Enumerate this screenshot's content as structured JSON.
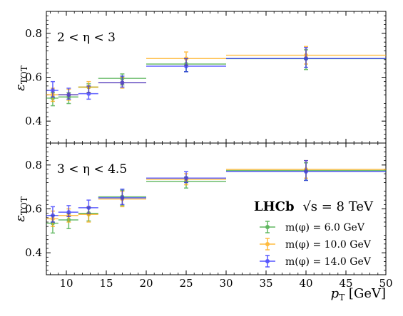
{
  "chart_data": {
    "type": "scatter",
    "xlabel": "p_T [GeV]",
    "ylabel": "ε_TOT",
    "xlim": [
      7.5,
      50
    ],
    "xticks": [
      10,
      15,
      20,
      25,
      30,
      35,
      40,
      45,
      50
    ],
    "yticks": [
      0.4,
      0.6,
      0.8
    ],
    "x_bins": [
      [
        7.5,
        9
      ],
      [
        9,
        11.5
      ],
      [
        11.5,
        14
      ],
      [
        14,
        20
      ],
      [
        20,
        30
      ],
      [
        30,
        50
      ]
    ],
    "x_centers": [
      8.3,
      10.3,
      12.8,
      17,
      25,
      40
    ],
    "legend": {
      "location": "lower right",
      "experiment": "LHCb",
      "energy_label": "√s = 8 TeV"
    },
    "colors": {
      "m6": "#2ca02c",
      "m10": "#ffa500",
      "m14": "#1f1fff"
    },
    "panels": [
      {
        "label": "2 < η < 3",
        "ylim": [
          0.3,
          0.9
        ],
        "series": [
          {
            "name": "m(φ) = 6.0 GeV",
            "values": [
              0.5,
              0.505,
              0.55,
              0.59,
              0.655,
              0.68
            ],
            "errors": [
              0.03,
              0.025,
              0.02,
              0.025,
              0.03,
              0.045
            ]
          },
          {
            "name": "m(φ) = 10.0 GeV",
            "values": [
              0.52,
              0.52,
              0.555,
              0.575,
              0.685,
              0.7
            ],
            "errors": [
              0.03,
              0.025,
              0.025,
              0.025,
              0.03,
              0.04
            ]
          },
          {
            "name": "m(φ) = 14.0 GeV",
            "values": [
              0.545,
              0.525,
              0.53,
              0.58,
              0.655,
              0.69
            ],
            "errors": [
              0.035,
              0.025,
              0.03,
              0.025,
              0.03,
              0.045
            ]
          }
        ]
      },
      {
        "label": "3 < η < 4.5",
        "ylim": [
          0.3,
          0.9
        ],
        "series": [
          {
            "name": "m(φ) = 6.0 GeV",
            "values": [
              0.53,
              0.545,
              0.575,
              0.65,
              0.72,
              0.77
            ],
            "errors": [
              0.04,
              0.035,
              0.03,
              0.035,
              0.025,
              0.04
            ]
          },
          {
            "name": "m(φ) = 10.0 GeV",
            "values": [
              0.555,
              0.57,
              0.575,
              0.645,
              0.735,
              0.78
            ],
            "errors": [
              0.035,
              0.03,
              0.035,
              0.035,
              0.025,
              0.04
            ]
          },
          {
            "name": "m(φ) = 14.0 GeV",
            "values": [
              0.575,
              0.59,
              0.61,
              0.655,
              0.745,
              0.775
            ],
            "errors": [
              0.035,
              0.025,
              0.03,
              0.035,
              0.025,
              0.045
            ]
          }
        ]
      }
    ]
  }
}
